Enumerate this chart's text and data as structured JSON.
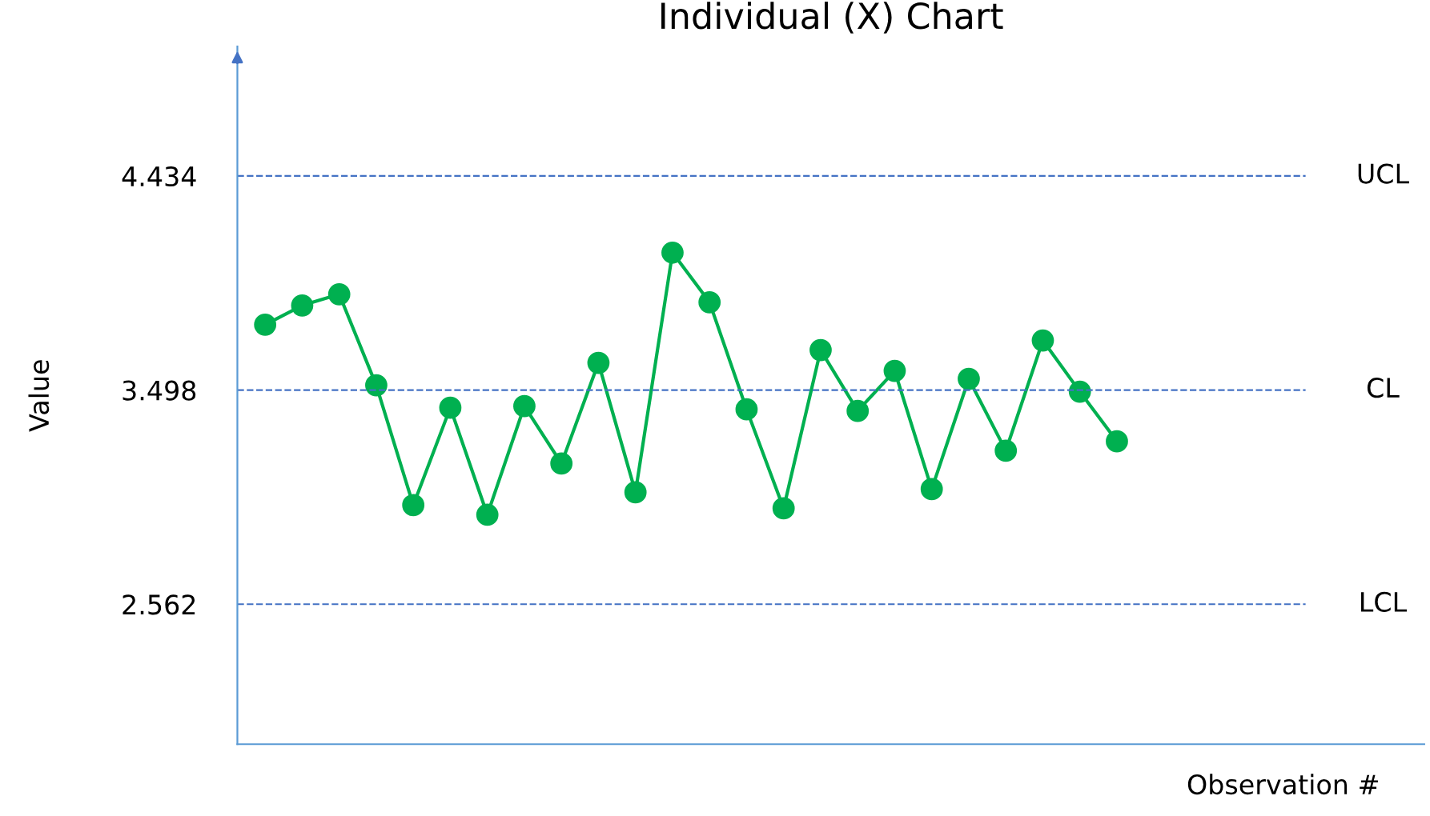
{
  "chart_data": {
    "type": "line",
    "title": "Individual (X) Chart",
    "xlabel": "Observation #",
    "ylabel": "Value",
    "categories": [
      null,
      null,
      null,
      null,
      null,
      null,
      null,
      null,
      null,
      null,
      null,
      null,
      null,
      null,
      null,
      null,
      null,
      null,
      null,
      null,
      null,
      null,
      null,
      null
    ],
    "series": [
      {
        "color": "#00b050",
        "values": [
          3.784,
          3.868,
          3.917,
          3.519,
          2.995,
          3.421,
          2.953,
          3.428,
          3.177,
          3.617,
          3.051,
          4.099,
          3.882,
          3.414,
          2.981,
          3.673,
          3.407,
          3.582,
          3.065,
          3.547,
          3.233,
          3.715,
          3.491,
          3.274
        ]
      }
    ],
    "ylim": [
      1.95,
      5.0
    ],
    "yticks": [
      2.562,
      3.498,
      4.434
    ],
    "ref_lines": [
      {
        "axis": "y",
        "value": 4.434,
        "label": "UCL",
        "color": "#4472c4",
        "line_style": "dashed"
      },
      {
        "axis": "y",
        "value": 3.498,
        "label": "CL",
        "color": "#4472c4",
        "line_style": "dashed"
      },
      {
        "axis": "y",
        "value": 2.562,
        "label": "LCL",
        "color": "#4472c4",
        "line_style": "dashed"
      }
    ],
    "marker": "circle",
    "line_style": "solid",
    "grid": false,
    "legend": false,
    "tick_labels": "y"
  }
}
